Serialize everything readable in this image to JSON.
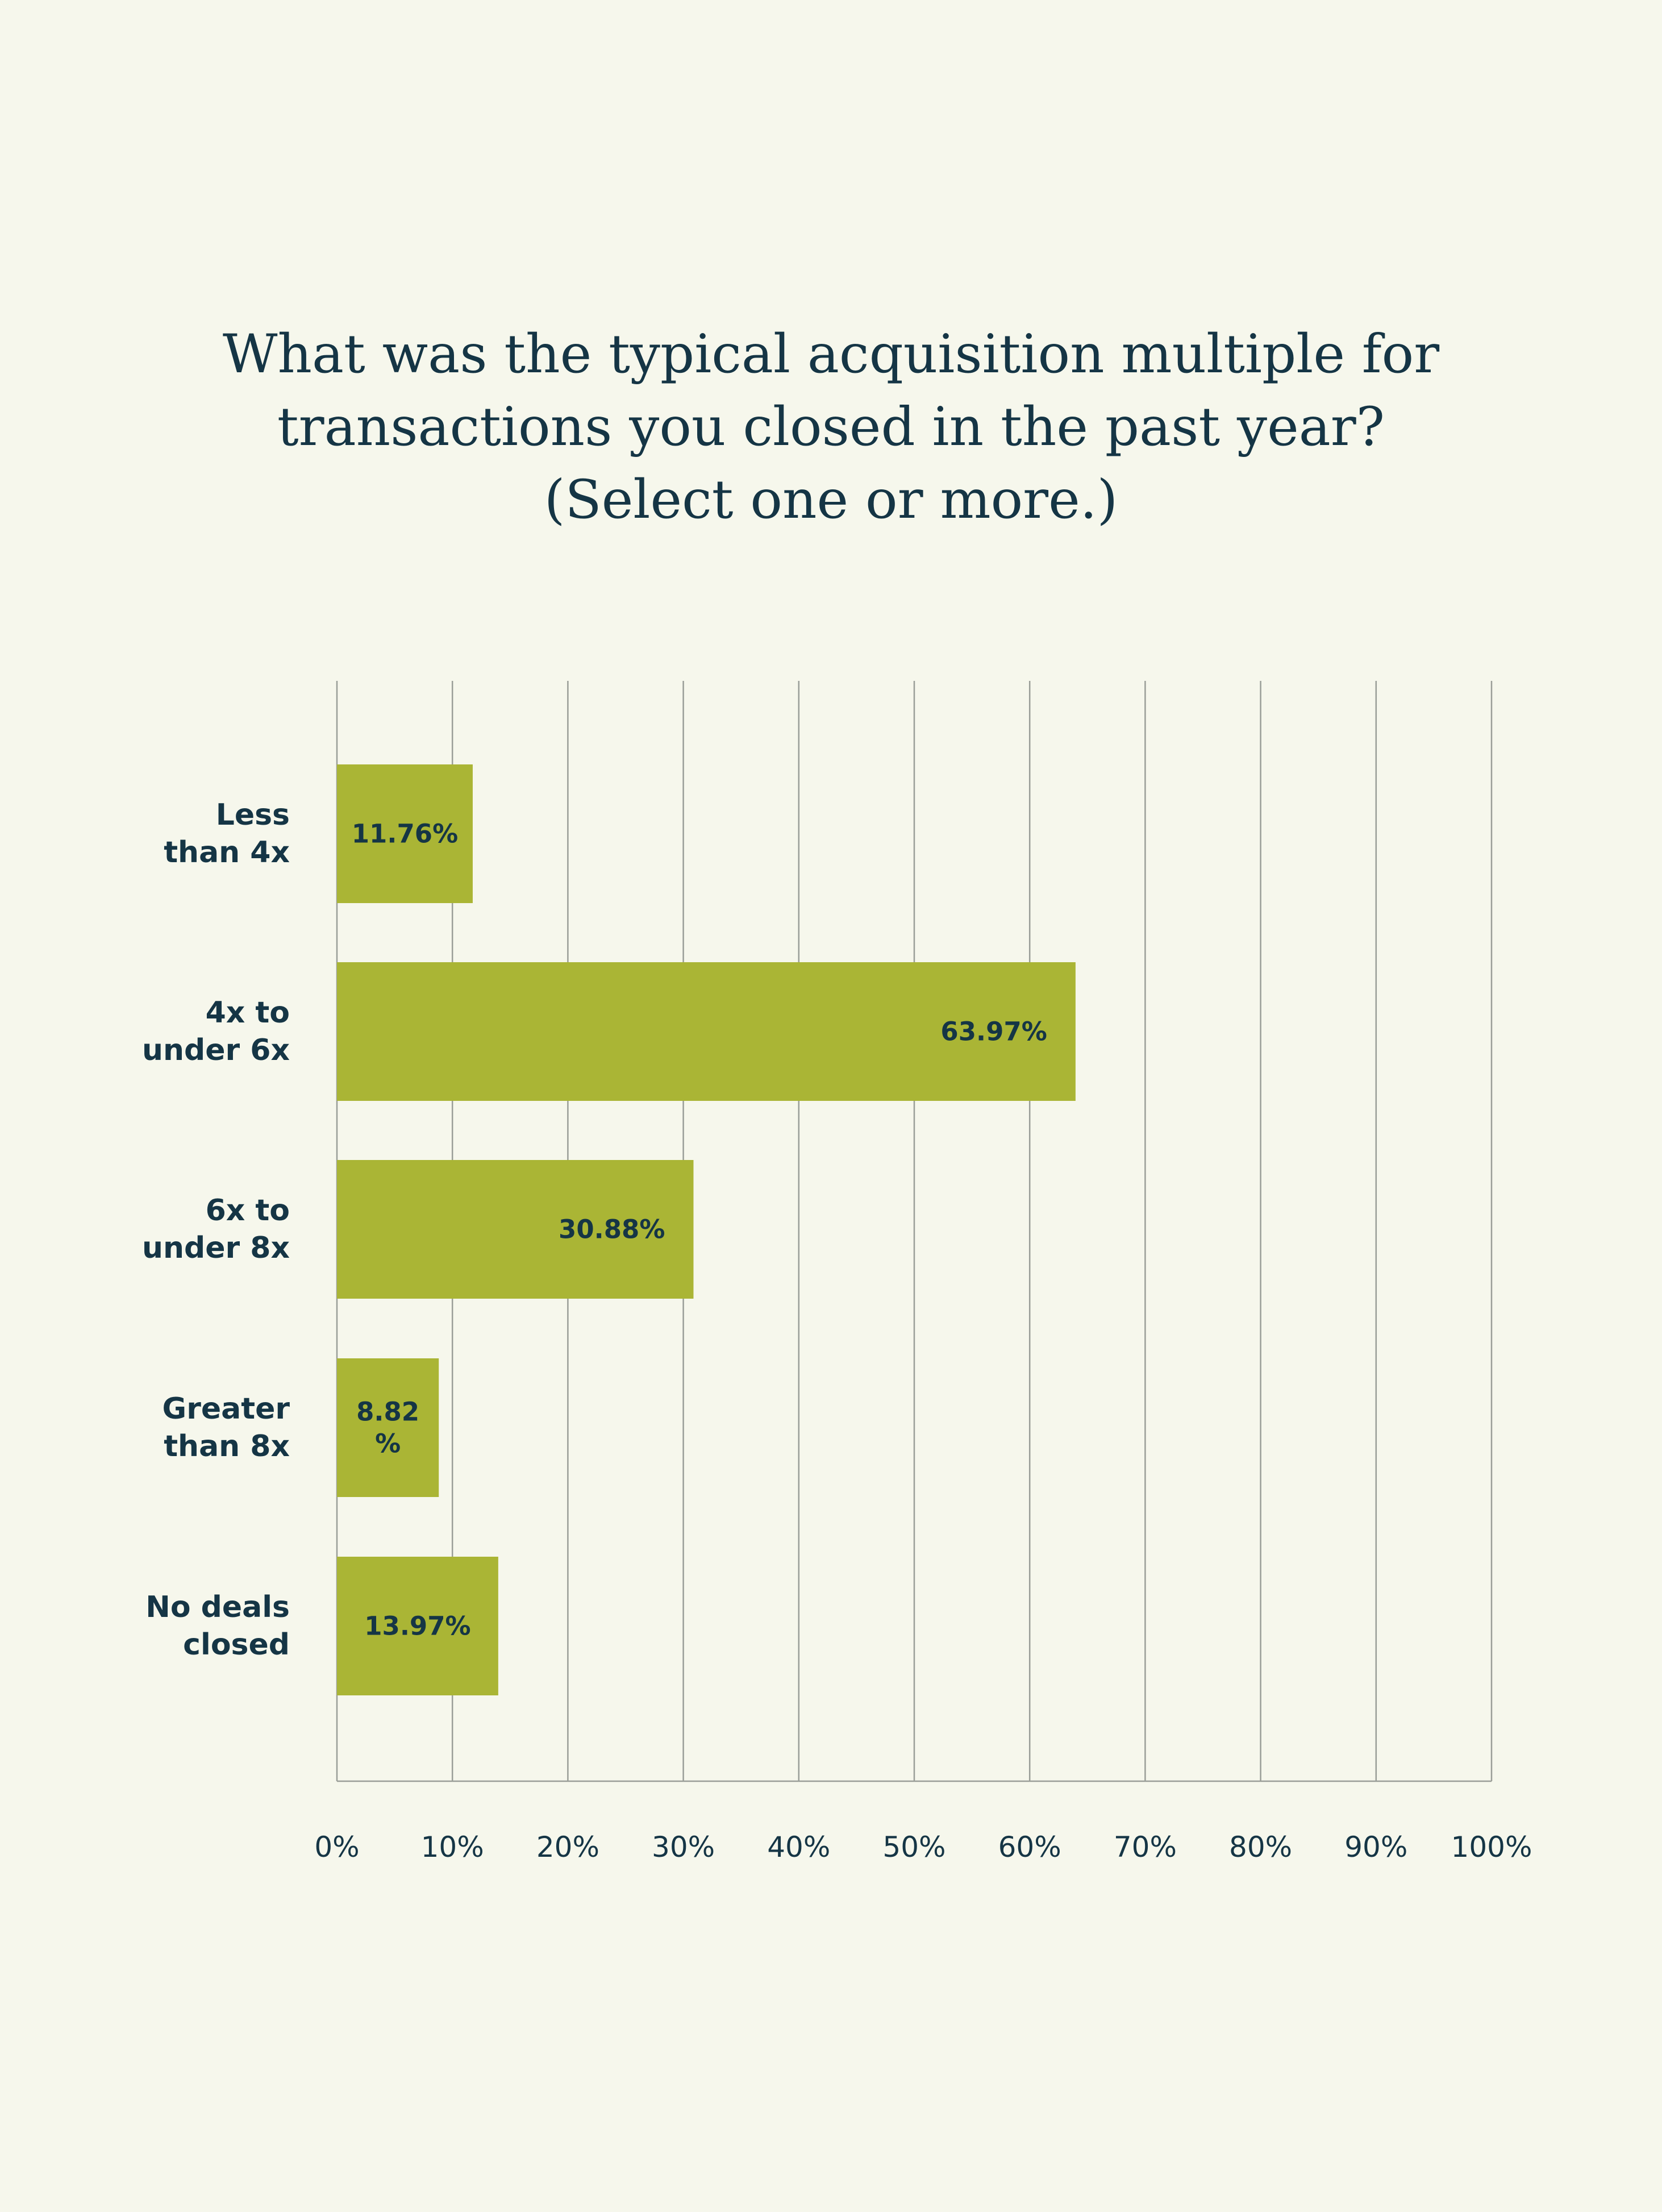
{
  "title_lines": [
    "What was the typical acquisition multiple for",
    "transactions you closed in the past year?",
    "(Select one or more.)"
  ],
  "colors": {
    "background": "#f6f7ec",
    "bar": "#aab535",
    "text": "#153545",
    "grid": "#9a9e98"
  },
  "chart_data": {
    "type": "bar",
    "orientation": "horizontal",
    "title": "What was the typical acquisition multiple for transactions you closed in the past year? (Select one or more.)",
    "categories": [
      [
        "Less",
        "than 4x"
      ],
      [
        "4x to",
        "under 6x"
      ],
      [
        "6x to",
        "under 8x"
      ],
      [
        "Greater",
        "than 8x"
      ],
      [
        "No deals",
        "closed"
      ]
    ],
    "values": [
      11.76,
      63.97,
      30.88,
      8.82,
      13.97
    ],
    "data_labels": [
      [
        "11.76%"
      ],
      [
        "63.97%"
      ],
      [
        "30.88%"
      ],
      [
        "8.82",
        "%"
      ],
      [
        "13.97%"
      ]
    ],
    "xlim": [
      0,
      100
    ],
    "x_ticks": [
      "0%",
      "10%",
      "20%",
      "30%",
      "40%",
      "50%",
      "60%",
      "70%",
      "80%",
      "90%",
      "100%"
    ],
    "grid": true,
    "legend": "none"
  }
}
